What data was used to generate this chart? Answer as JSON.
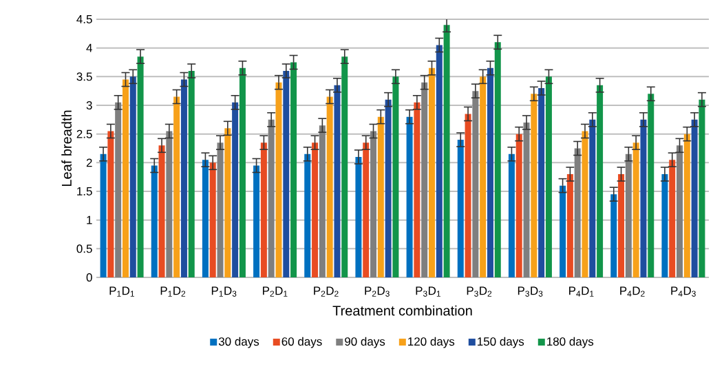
{
  "chart_data": {
    "type": "bar",
    "xlabel": "Treatment combination",
    "ylabel": "Leaf breadth",
    "categories": [
      "P$_{1}$D$_{1}$",
      "P$_{1}$D$_{2}$",
      "P$_{1}$D$_{3}$",
      "P$_{2}$D$_{1}$",
      "P$_{2}$D$_{2}$",
      "P$_{2}$D$_{3}$",
      "P$_{3}$D$_{1}$",
      "P$_{3}$D$_{2}$",
      "P$_{3}$D$_{3}$",
      "P$_{4}$D$_{1}$",
      "P$_{4}$D$_{2}$",
      "P$_{4}$D$_{3}$"
    ],
    "series": [
      {
        "name": "30 days",
        "color": "#0070c0",
        "values": [
          2.15,
          1.95,
          2.05,
          1.95,
          2.15,
          2.1,
          2.8,
          2.4,
          2.15,
          1.6,
          1.45,
          1.8
        ],
        "errors": [
          0.12,
          0.12,
          0.12,
          0.12,
          0.12,
          0.12,
          0.12,
          0.12,
          0.12,
          0.12,
          0.12,
          0.12
        ]
      },
      {
        "name": "60 days",
        "color": "#e84c22",
        "values": [
          2.55,
          2.3,
          2.0,
          2.35,
          2.35,
          2.35,
          3.05,
          2.85,
          2.5,
          1.8,
          1.8,
          2.05
        ],
        "errors": [
          0.12,
          0.12,
          0.12,
          0.12,
          0.12,
          0.12,
          0.12,
          0.12,
          0.12,
          0.12,
          0.12,
          0.12
        ]
      },
      {
        "name": "90 days",
        "color": "#7f7f7f",
        "values": [
          3.05,
          2.55,
          2.35,
          2.75,
          2.65,
          2.55,
          3.4,
          3.25,
          2.7,
          2.25,
          2.15,
          2.3
        ],
        "errors": [
          0.12,
          0.12,
          0.12,
          0.12,
          0.12,
          0.12,
          0.12,
          0.12,
          0.12,
          0.12,
          0.12,
          0.12
        ]
      },
      {
        "name": "120 days",
        "color": "#f7a11a",
        "values": [
          3.45,
          3.15,
          2.6,
          3.4,
          3.15,
          2.8,
          3.65,
          3.5,
          3.2,
          2.55,
          2.35,
          2.5
        ],
        "errors": [
          0.12,
          0.12,
          0.12,
          0.12,
          0.12,
          0.12,
          0.12,
          0.12,
          0.12,
          0.12,
          0.12,
          0.12
        ]
      },
      {
        "name": "150 days",
        "color": "#1f4e9f",
        "values": [
          3.5,
          3.45,
          3.05,
          3.6,
          3.35,
          3.1,
          4.05,
          3.65,
          3.3,
          2.75,
          2.75,
          2.75
        ],
        "errors": [
          0.12,
          0.12,
          0.12,
          0.12,
          0.12,
          0.12,
          0.12,
          0.12,
          0.12,
          0.12,
          0.12,
          0.12
        ]
      },
      {
        "name": "180 days",
        "color": "#12954a",
        "values": [
          3.85,
          3.6,
          3.65,
          3.75,
          3.85,
          3.5,
          4.4,
          4.1,
          3.5,
          3.35,
          3.2,
          3.1
        ],
        "errors": [
          0.12,
          0.12,
          0.12,
          0.12,
          0.12,
          0.12,
          0.12,
          0.12,
          0.12,
          0.12,
          0.12,
          0.12
        ]
      }
    ],
    "ylim": [
      0,
      4.5
    ],
    "yticks": [
      0,
      0.5,
      1,
      1.5,
      2,
      2.5,
      3,
      3.5,
      4,
      4.5
    ],
    "grid": "y",
    "legend": "bottom"
  }
}
